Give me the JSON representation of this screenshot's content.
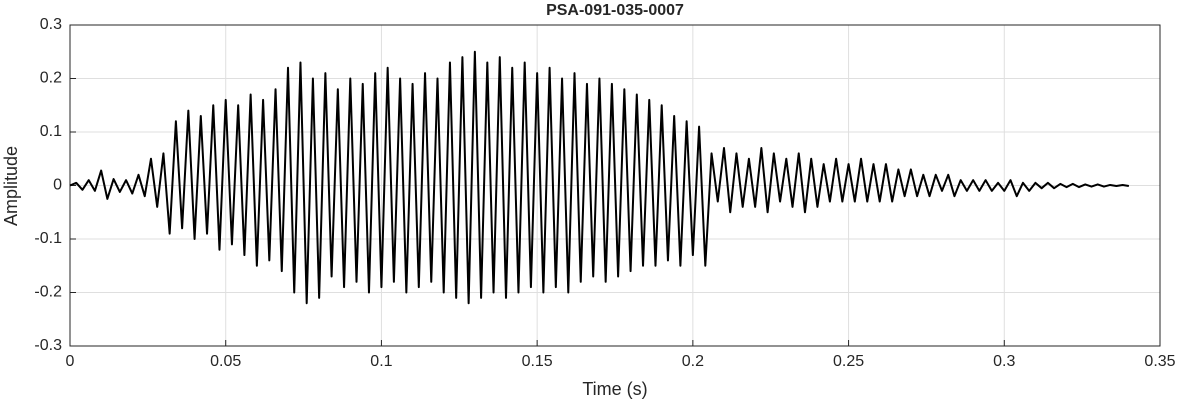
{
  "chart_data": {
    "type": "line",
    "title": "PSA-091-035-0007",
    "xlabel": "Time (s)",
    "ylabel": "Amplitude",
    "xlim": [
      0,
      0.35
    ],
    "xticks": [
      0,
      0.05,
      0.1,
      0.15,
      0.2,
      0.25,
      0.3,
      0.35
    ],
    "ylim": [
      -0.3,
      0.3
    ],
    "yticks": [
      -0.3,
      -0.2,
      -0.1,
      0,
      0.1,
      0.2,
      0.3
    ],
    "grid": true,
    "series": [
      {
        "color": "#000000",
        "x": [
          0,
          0.002,
          0.004,
          0.006,
          0.008,
          0.01,
          0.012,
          0.014,
          0.016,
          0.018,
          0.02,
          0.022,
          0.024,
          0.026,
          0.028,
          0.03,
          0.032,
          0.034,
          0.036,
          0.038,
          0.04,
          0.042,
          0.044,
          0.046,
          0.048,
          0.05,
          0.052,
          0.054,
          0.056,
          0.058,
          0.06,
          0.062,
          0.064,
          0.066,
          0.068,
          0.07,
          0.072,
          0.074,
          0.076,
          0.078,
          0.08,
          0.082,
          0.084,
          0.086,
          0.088,
          0.09,
          0.092,
          0.094,
          0.096,
          0.098,
          0.1,
          0.102,
          0.104,
          0.106,
          0.108,
          0.11,
          0.112,
          0.114,
          0.116,
          0.118,
          0.12,
          0.122,
          0.124,
          0.126,
          0.128,
          0.13,
          0.132,
          0.134,
          0.136,
          0.138,
          0.14,
          0.142,
          0.144,
          0.146,
          0.148,
          0.15,
          0.152,
          0.154,
          0.156,
          0.158,
          0.16,
          0.162,
          0.164,
          0.166,
          0.168,
          0.17,
          0.172,
          0.174,
          0.176,
          0.178,
          0.18,
          0.182,
          0.184,
          0.186,
          0.188,
          0.19,
          0.192,
          0.194,
          0.196,
          0.198,
          0.2,
          0.202,
          0.204,
          0.206,
          0.208,
          0.21,
          0.212,
          0.214,
          0.216,
          0.218,
          0.22,
          0.222,
          0.224,
          0.226,
          0.228,
          0.23,
          0.232,
          0.234,
          0.236,
          0.238,
          0.24,
          0.242,
          0.244,
          0.246,
          0.248,
          0.25,
          0.252,
          0.254,
          0.256,
          0.258,
          0.26,
          0.262,
          0.264,
          0.266,
          0.268,
          0.27,
          0.272,
          0.274,
          0.276,
          0.278,
          0.28,
          0.282,
          0.284,
          0.286,
          0.288,
          0.29,
          0.292,
          0.294,
          0.296,
          0.298,
          0.3,
          0.302,
          0.304,
          0.306,
          0.308,
          0.31,
          0.312,
          0.314,
          0.316,
          0.318,
          0.32,
          0.322,
          0.324,
          0.326,
          0.328,
          0.33,
          0.332,
          0.334,
          0.336,
          0.338,
          0.34
        ],
        "values": [
          0,
          0.005,
          -0.008,
          0.01,
          -0.01,
          0.028,
          -0.025,
          0.012,
          -0.012,
          0.01,
          -0.015,
          0.02,
          -0.02,
          0.05,
          -0.04,
          0.06,
          -0.09,
          0.12,
          -0.08,
          0.14,
          -0.1,
          0.13,
          -0.09,
          0.15,
          -0.12,
          0.16,
          -0.11,
          0.15,
          -0.13,
          0.17,
          -0.15,
          0.16,
          -0.14,
          0.18,
          -0.16,
          0.22,
          -0.2,
          0.23,
          -0.22,
          0.2,
          -0.21,
          0.21,
          -0.17,
          0.18,
          -0.19,
          0.2,
          -0.18,
          0.19,
          -0.2,
          0.21,
          -0.19,
          0.22,
          -0.18,
          0.2,
          -0.2,
          0.19,
          -0.19,
          0.21,
          -0.18,
          0.2,
          -0.2,
          0.23,
          -0.21,
          0.24,
          -0.22,
          0.25,
          -0.21,
          0.23,
          -0.2,
          0.24,
          -0.21,
          0.22,
          -0.2,
          0.23,
          -0.19,
          0.21,
          -0.2,
          0.22,
          -0.19,
          0.2,
          -0.2,
          0.21,
          -0.18,
          0.19,
          -0.17,
          0.2,
          -0.18,
          0.19,
          -0.17,
          0.18,
          -0.16,
          0.17,
          -0.15,
          0.16,
          -0.15,
          0.15,
          -0.14,
          0.13,
          -0.15,
          0.12,
          -0.13,
          0.11,
          -0.15,
          0.06,
          -0.03,
          0.07,
          -0.05,
          0.06,
          -0.04,
          0.05,
          -0.04,
          0.07,
          -0.05,
          0.06,
          -0.03,
          0.05,
          -0.04,
          0.06,
          -0.05,
          0.05,
          -0.04,
          0.04,
          -0.03,
          0.05,
          -0.03,
          0.04,
          -0.03,
          0.05,
          -0.03,
          0.04,
          -0.03,
          0.04,
          -0.03,
          0.03,
          -0.02,
          0.03,
          -0.02,
          0.02,
          -0.02,
          0.02,
          -0.01,
          0.02,
          -0.02,
          0.01,
          -0.01,
          0.01,
          -0.01,
          0.01,
          -0.01,
          0.005,
          -0.01,
          0.01,
          -0.02,
          0.005,
          -0.01,
          0.005,
          -0.005,
          0.005,
          -0.005,
          0.003,
          -0.003,
          0.003,
          -0.003,
          0.002,
          -0.002,
          0.002,
          -0.002,
          0.001,
          -0.001,
          0.001,
          -0.001
        ]
      }
    ]
  }
}
